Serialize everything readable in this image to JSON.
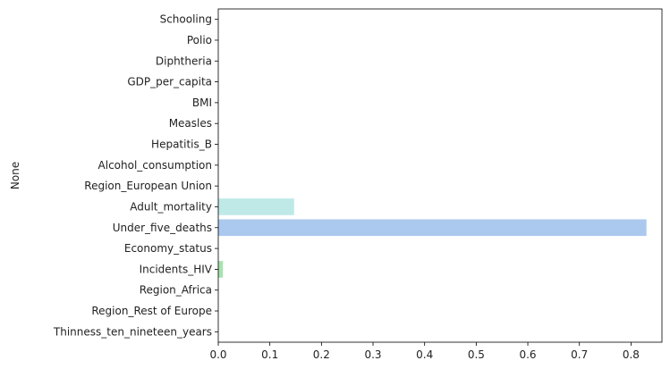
{
  "chart_data": {
    "type": "bar",
    "orientation": "horizontal",
    "title": "",
    "xlabel": "",
    "ylabel": "None",
    "xlim": [
      0,
      0.86
    ],
    "xticks": [
      0.0,
      0.1,
      0.2,
      0.3,
      0.4,
      0.5,
      0.6,
      0.7,
      0.8
    ],
    "xtick_labels": [
      "0.0",
      "0.1",
      "0.2",
      "0.3",
      "0.4",
      "0.5",
      "0.6",
      "0.7",
      "0.8"
    ],
    "grid": false,
    "legend": "none",
    "categories": [
      "Schooling",
      "Polio",
      "Diphtheria",
      "GDP_per_capita",
      "BMI",
      "Measles",
      "Hepatitis_B",
      "Alcohol_consumption",
      "Region_European Union",
      "Adult_mortality",
      "Under_five_deaths",
      "Economy_status",
      "Incidents_HIV",
      "Region_Africa",
      "Region_Rest of Europe",
      "Thinness_ten_nineteen_years"
    ],
    "values": [
      0.0,
      0.0,
      0.0,
      0.0,
      0.0,
      0.0,
      0.0,
      0.0,
      0.0,
      0.147,
      0.83,
      0.0,
      0.009,
      0.0,
      0.0,
      0.0
    ],
    "colors": [
      "#fbb4ae",
      "#b3cde3",
      "#ccebc5",
      "#decbe4",
      "#fed9a6",
      "#ffffcc",
      "#e5d8bd",
      "#fddaec",
      "#f2f2f2",
      "#bfe9e7",
      "#abc9ee",
      "#f2e6b4",
      "#a6e3b0",
      "#e0c8f0",
      "#fff2ae",
      "#f4cae4"
    ]
  }
}
